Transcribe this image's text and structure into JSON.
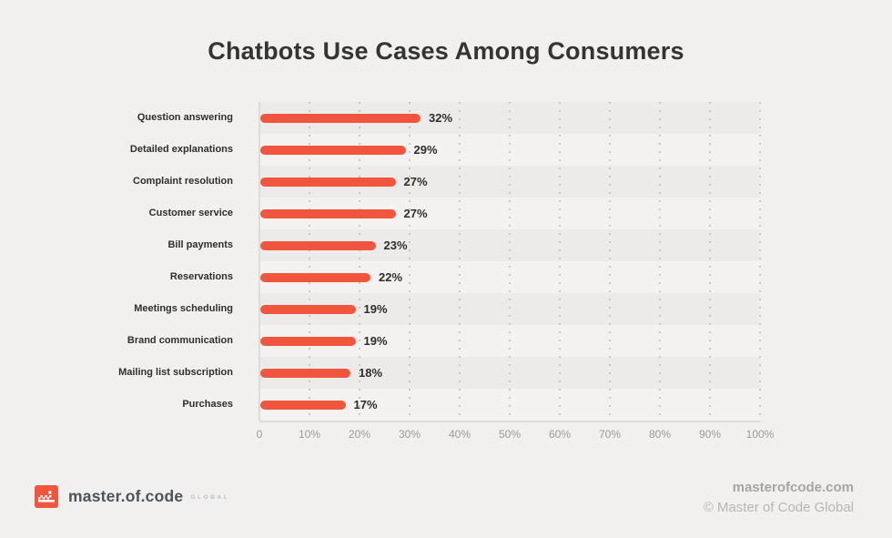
{
  "title": "Chatbots Use Cases Among Consumers",
  "chart_data": {
    "type": "bar",
    "orientation": "horizontal",
    "title": "Chatbots Use Cases Among Consumers",
    "categories": [
      "Question answering",
      "Detailed explanations",
      "Complaint resolution",
      "Customer service",
      "Bill payments",
      "Reservations",
      "Meetings scheduling",
      "Brand communication",
      "Mailing list subscription",
      "Purchases"
    ],
    "values": [
      32,
      29,
      27,
      27,
      23,
      22,
      19,
      19,
      18,
      17
    ],
    "value_labels": [
      "32%",
      "29%",
      "27%",
      "27%",
      "23%",
      "22%",
      "19%",
      "19%",
      "18%",
      "17%"
    ],
    "x_ticks": [
      "0",
      "10%",
      "20%",
      "30%",
      "40%",
      "50%",
      "60%",
      "70%",
      "80%",
      "90%",
      "100%"
    ],
    "xlim": [
      0,
      100
    ],
    "xlabel": "",
    "ylabel": "",
    "grid": "vertical-dotted",
    "legend": "none",
    "bar_color": "#F0563E"
  },
  "footer": {
    "logo_text": "master.of.code",
    "logo_suffix": "GLOBAL",
    "website": "masterofcode.com",
    "copyright": "© Master of Code Global"
  },
  "colors": {
    "accent": "#F0563E",
    "background": "#F1F0EE",
    "title_text": "#343434",
    "tick_text": "#9B9B9B",
    "stripe_dark": "#ECEBE9",
    "stripe_light": "#F3F2F0"
  }
}
